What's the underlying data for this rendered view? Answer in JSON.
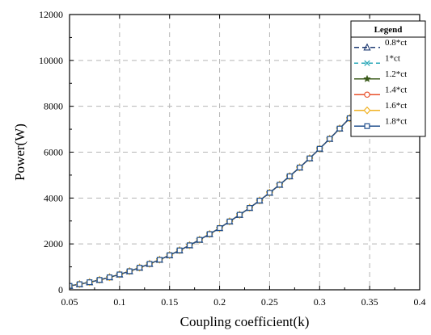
{
  "chart_data": {
    "type": "line",
    "title": "",
    "xlabel": "Coupling coefficient(k)",
    "ylabel": "Power(W)",
    "xlim": [
      0.05,
      0.4
    ],
    "ylim": [
      0,
      12000
    ],
    "xticks": [
      0.05,
      0.1,
      0.15,
      0.2,
      0.25,
      0.3,
      0.35,
      0.4
    ],
    "yticks": [
      0,
      2000,
      4000,
      6000,
      8000,
      10000,
      12000
    ],
    "xtick_labels": [
      "0.05",
      "0.1",
      "0.15",
      "0.2",
      "0.25",
      "0.3",
      "0.35",
      "0.4"
    ],
    "ytick_labels": [
      "0",
      "2000",
      "4000",
      "6000",
      "8000",
      "10000",
      "12000"
    ],
    "grid": true,
    "legend": {
      "title": "Legend",
      "position": "top-right"
    },
    "x": [
      0.05,
      0.06,
      0.07,
      0.08,
      0.09,
      0.1,
      0.11,
      0.12,
      0.13,
      0.14,
      0.15,
      0.16,
      0.17,
      0.18,
      0.19,
      0.2,
      0.21,
      0.22,
      0.23,
      0.24,
      0.25,
      0.26,
      0.27,
      0.28,
      0.29,
      0.3,
      0.31,
      0.32,
      0.33,
      0.34,
      0.35,
      0.36,
      0.37,
      0.38,
      0.39,
      0.4
    ],
    "series": [
      {
        "name": "0.8*ct",
        "color": "#1f3b73",
        "dash": "6,4",
        "marker": "triangle-open",
        "values": [
          170,
          245,
          330,
          430,
          545,
          670,
          810,
          965,
          1130,
          1310,
          1510,
          1720,
          1940,
          2180,
          2430,
          2690,
          2980,
          3270,
          3570,
          3890,
          4230,
          4580,
          4950,
          5330,
          5730,
          6150,
          6580,
          7030,
          7480,
          7960,
          8450,
          8950,
          9470,
          9990,
          10510,
          10920
        ]
      },
      {
        "name": "1*ct",
        "color": "#2aa8b8",
        "dash": "5,4",
        "marker": "x",
        "values": [
          170,
          245,
          330,
          430,
          545,
          670,
          810,
          965,
          1130,
          1310,
          1510,
          1720,
          1940,
          2180,
          2430,
          2690,
          2980,
          3270,
          3570,
          3890,
          4230,
          4580,
          4950,
          5330,
          5730,
          6150,
          6580,
          7030,
          7480,
          7960,
          8450,
          8950,
          9470,
          9990,
          10510,
          10920
        ]
      },
      {
        "name": "1.2*ct",
        "color": "#3a5a1a",
        "dash": "",
        "marker": "star",
        "values": [
          170,
          245,
          330,
          430,
          545,
          670,
          810,
          965,
          1130,
          1310,
          1510,
          1720,
          1940,
          2180,
          2430,
          2690,
          2980,
          3270,
          3570,
          3890,
          4230,
          4580,
          4950,
          5330,
          5730,
          6150,
          6580,
          7030,
          7480,
          7960,
          8450,
          8950,
          9470,
          9990,
          10510,
          10920
        ]
      },
      {
        "name": "1.4*ct",
        "color": "#e8502a",
        "dash": "",
        "marker": "circle-open",
        "values": [
          170,
          245,
          330,
          430,
          545,
          670,
          810,
          965,
          1130,
          1310,
          1510,
          1720,
          1940,
          2180,
          2430,
          2690,
          2980,
          3270,
          3570,
          3890,
          4230,
          4580,
          4950,
          5330,
          5730,
          6150,
          6580,
          7030,
          7480,
          7960,
          8450,
          8950,
          9470,
          9990,
          10510,
          10920
        ]
      },
      {
        "name": "1.6*ct",
        "color": "#f0b020",
        "dash": "",
        "marker": "diamond-open",
        "values": [
          170,
          245,
          330,
          430,
          545,
          670,
          810,
          965,
          1130,
          1310,
          1510,
          1720,
          1940,
          2180,
          2430,
          2690,
          2980,
          3270,
          3570,
          3890,
          4230,
          4580,
          4950,
          5330,
          5730,
          6150,
          6580,
          7030,
          7480,
          7960,
          8450,
          8950,
          9470,
          9990,
          10510,
          10920
        ]
      },
      {
        "name": "1.8*ct",
        "color": "#1f4e8c",
        "dash": "",
        "marker": "square-open",
        "values": [
          170,
          245,
          330,
          430,
          545,
          670,
          810,
          965,
          1130,
          1310,
          1510,
          1720,
          1940,
          2180,
          2430,
          2690,
          2980,
          3270,
          3570,
          3890,
          4230,
          4580,
          4950,
          5330,
          5730,
          6150,
          6580,
          7030,
          7480,
          7960,
          8450,
          8950,
          9470,
          9990,
          10510,
          10920
        ]
      }
    ]
  }
}
